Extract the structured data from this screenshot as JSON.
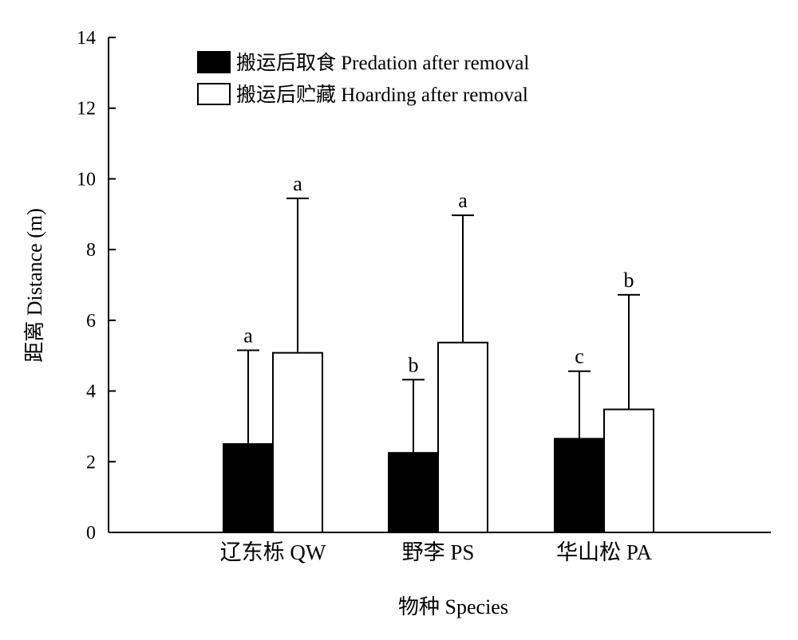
{
  "chart_data": {
    "type": "bar",
    "title": "",
    "xlabel": "物种 Species",
    "ylabel": "距离 Distance (m)",
    "ylim": [
      0,
      14
    ],
    "yticks": [
      0,
      2,
      4,
      6,
      8,
      10,
      12,
      14
    ],
    "categories": [
      "辽东栎 QW",
      "野李 PS",
      "华山松 PA"
    ],
    "legend_position": "top-left",
    "series": [
      {
        "name": "搬运后取食 Predation after removal",
        "color": "#000000",
        "values": [
          2.5,
          2.25,
          2.65
        ],
        "error_upper": [
          5.15,
          4.32,
          4.56
        ],
        "significance": [
          "a",
          "b",
          "c"
        ]
      },
      {
        "name": "搬运后贮藏 Hoarding after  removal",
        "color": "#ffffff",
        "values": [
          5.08,
          5.37,
          3.48
        ],
        "error_upper": [
          9.45,
          8.97,
          6.72
        ],
        "significance": [
          "a",
          "a",
          "b"
        ]
      }
    ]
  }
}
